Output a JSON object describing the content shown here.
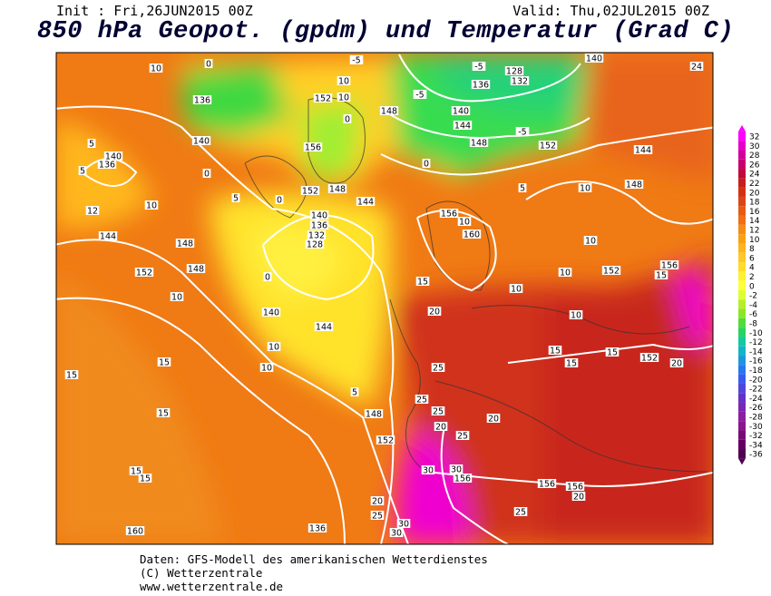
{
  "header": {
    "init": "Init : Fri,26JUN2015 00Z",
    "valid": "Valid: Thu,02JUL2015 00Z",
    "title": "850 hPa Geopot. (gpdm) und Temperatur (Grad C)"
  },
  "contour_labels": [
    10,
    0,
    -5,
    -5,
    128,
    132,
    136,
    -5,
    140,
    144,
    -5,
    148,
    152,
    144,
    136,
    10,
    10,
    152,
    148,
    0,
    156,
    140,
    5,
    140,
    136,
    5,
    0,
    0,
    152,
    148,
    5,
    10,
    148,
    0,
    5,
    144,
    12,
    10,
    140,
    136,
    156,
    10,
    132,
    128,
    160,
    144,
    148,
    10,
    152,
    148,
    0,
    10,
    152,
    156,
    15,
    15,
    10,
    10,
    20,
    140,
    10,
    144,
    15,
    15,
    152,
    10,
    15,
    15,
    10,
    25,
    20,
    15,
    25,
    5,
    148,
    25,
    20,
    20,
    15,
    152,
    25,
    15,
    15,
    30,
    30,
    156,
    156,
    156,
    20,
    20,
    25,
    30,
    25,
    30,
    136,
    160,
    140,
    24
  ],
  "colorbar": {
    "ticks": [
      32,
      30,
      28,
      26,
      24,
      22,
      20,
      18,
      16,
      14,
      12,
      10,
      8,
      6,
      4,
      2,
      0,
      -2,
      -4,
      -6,
      -8,
      -10,
      -12,
      -14,
      -16,
      -18,
      -20,
      -22,
      -24,
      -26,
      -28,
      -30,
      -32,
      -34,
      -36
    ],
    "colors": [
      "#ff00ff",
      "#e600c8",
      "#d2009a",
      "#c8006e",
      "#be0a3c",
      "#c81e1e",
      "#d23214",
      "#dc4614",
      "#e65a14",
      "#f06e14",
      "#f58c14",
      "#faa014",
      "#ffb41e",
      "#ffc828",
      "#ffdc28",
      "#fff032",
      "#ffff3c",
      "#dcff32",
      "#b4f028",
      "#8ce628",
      "#50dc3c",
      "#28d264",
      "#14c8a0",
      "#14b4c8",
      "#1e96dc",
      "#2878f0",
      "#3c5af0",
      "#5046dc",
      "#6432c8",
      "#7828b4",
      "#8c1ea0",
      "#8c148c",
      "#780a78",
      "#640064",
      "#500050"
    ]
  },
  "footer": {
    "line1": "Daten: GFS-Modell des amerikanischen Wetterdienstes",
    "line2": "(C) Wetterzentrale",
    "line3": "www.wetterzentrale.de"
  }
}
